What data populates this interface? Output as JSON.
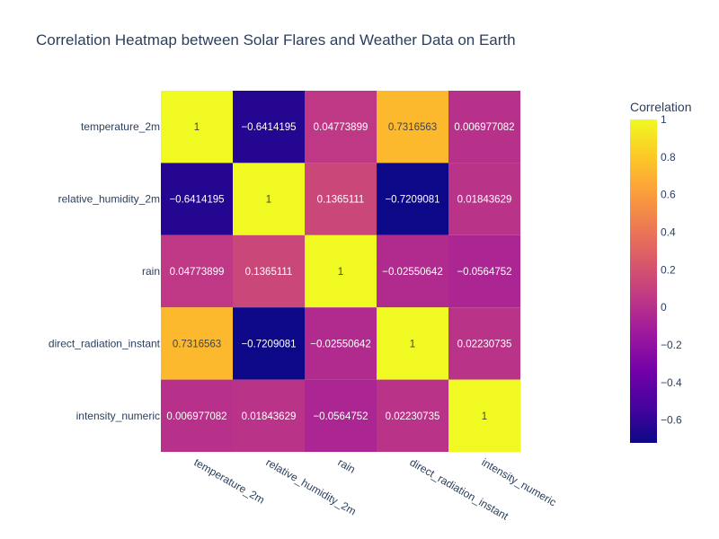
{
  "chart_data": {
    "type": "heatmap",
    "title": "Correlation Heatmap between Solar Flares and Weather Data on Earth",
    "x_categories": [
      "temperature_2m",
      "relative_humidity_2m",
      "rain",
      "direct_radiation_instant",
      "intensity_numeric"
    ],
    "y_categories": [
      "temperature_2m",
      "relative_humidity_2m",
      "rain",
      "direct_radiation_instant",
      "intensity_numeric"
    ],
    "z": [
      [
        1,
        -0.6414195,
        0.04773899,
        0.7316563,
        0.006977082
      ],
      [
        -0.6414195,
        1,
        0.1365111,
        -0.7209081,
        0.01843629
      ],
      [
        0.04773899,
        0.1365111,
        1,
        -0.02550642,
        -0.0564752
      ],
      [
        0.7316563,
        -0.7209081,
        -0.02550642,
        1,
        0.02230735
      ],
      [
        0.006977082,
        0.01843629,
        -0.0564752,
        0.02230735,
        1
      ]
    ],
    "cell_labels": [
      [
        "1",
        "−0.6414195",
        "0.04773899",
        "0.7316563",
        "0.006977082"
      ],
      [
        "−0.6414195",
        "1",
        "0.1365111",
        "−0.7209081",
        "0.01843629"
      ],
      [
        "0.04773899",
        "0.1365111",
        "1",
        "−0.02550642",
        "−0.0564752"
      ],
      [
        "0.7316563",
        "−0.7209081",
        "−0.02550642",
        "1",
        "0.02230735"
      ],
      [
        "0.006977082",
        "0.01843629",
        "−0.0564752",
        "0.02230735",
        "1"
      ]
    ],
    "colorscale": "plasma",
    "zmin": -0.7209081,
    "zmax": 1,
    "colorbar": {
      "title": "Correlation",
      "tickvals": [
        1,
        0.8,
        0.6,
        0.4,
        0.2,
        0,
        -0.2,
        -0.4,
        -0.6
      ],
      "ticktext": [
        "1",
        "0.8",
        "0.6",
        "0.4",
        "0.2",
        "0",
        "−0.2",
        "−0.4",
        "−0.6"
      ]
    },
    "legend_position": "right"
  }
}
